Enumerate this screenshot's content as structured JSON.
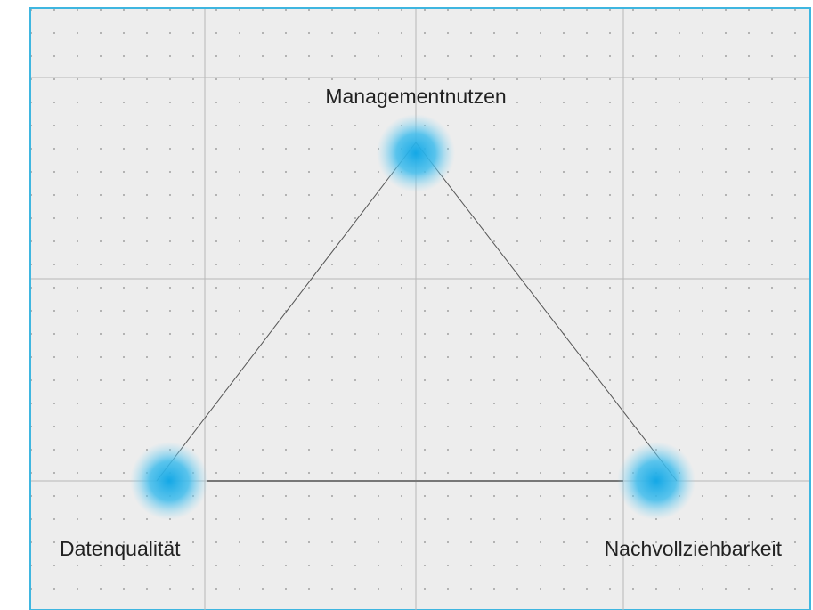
{
  "nodes": [
    {
      "label": "Managementnutzen"
    },
    {
      "label": "Datenqualität"
    },
    {
      "label": "Nachvollziehbarkeit"
    }
  ]
}
